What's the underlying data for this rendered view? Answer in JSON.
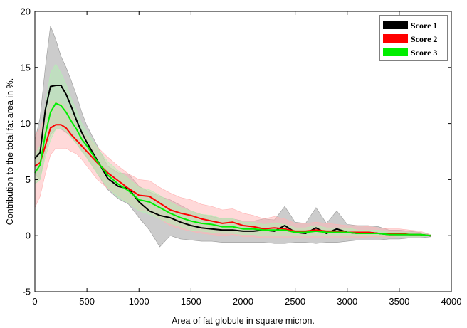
{
  "chart_data": {
    "type": "line",
    "title": "",
    "xlabel": "Area of fat globule in square micron.",
    "ylabel": "Contribution to the total fat area in %.",
    "xlim": [
      0,
      4000
    ],
    "ylim": [
      -5,
      20
    ],
    "xticks": [
      "0",
      "500",
      "1000",
      "1500",
      "2000",
      "2500",
      "3000",
      "3500",
      "4000"
    ],
    "yticks": [
      "-5",
      "0",
      "5",
      "10",
      "15",
      "20"
    ],
    "grid": false,
    "legend_position": "top-right",
    "x": [
      0,
      50,
      100,
      150,
      200,
      250,
      300,
      350,
      400,
      450,
      500,
      600,
      700,
      800,
      900,
      1000,
      1100,
      1200,
      1300,
      1400,
      1500,
      1600,
      1700,
      1800,
      1900,
      2000,
      2100,
      2200,
      2300,
      2400,
      2500,
      2600,
      2700,
      2800,
      2900,
      3000,
      3100,
      3200,
      3300,
      3400,
      3500,
      3600,
      3700,
      3800
    ],
    "series": [
      {
        "name": "Score 1",
        "color": "#000000",
        "band_color": "#9a9a9a",
        "values": [
          6.9,
          7.4,
          11.2,
          13.3,
          13.4,
          13.4,
          12.6,
          11.5,
          10.3,
          9.2,
          8.3,
          6.7,
          5.1,
          4.4,
          4.2,
          3.0,
          2.2,
          1.8,
          1.6,
          1.2,
          0.9,
          0.7,
          0.6,
          0.5,
          0.5,
          0.4,
          0.4,
          0.5,
          0.4,
          0.9,
          0.3,
          0.2,
          0.7,
          0.2,
          0.6,
          0.3,
          0.2,
          0.3,
          0.2,
          0.1,
          0.1,
          0.1,
          0.1,
          0.0
        ],
        "lower": [
          5.5,
          5.0,
          7.5,
          9.0,
          9.5,
          9.5,
          9.2,
          8.8,
          8.2,
          7.6,
          7.0,
          5.5,
          4.1,
          3.3,
          2.8,
          1.6,
          0.5,
          -1.0,
          0.0,
          -0.3,
          -0.4,
          -0.5,
          -0.5,
          -0.6,
          -0.6,
          -0.6,
          -0.6,
          -0.6,
          -0.7,
          -0.7,
          -0.6,
          -0.6,
          -0.7,
          -0.6,
          -0.6,
          -0.5,
          -0.4,
          -0.4,
          -0.4,
          -0.3,
          -0.3,
          -0.2,
          -0.2,
          -0.1
        ],
        "upper": [
          8.5,
          10.5,
          15.0,
          18.7,
          17.5,
          16.0,
          15.0,
          13.8,
          12.5,
          11.0,
          9.8,
          8.0,
          6.2,
          5.6,
          5.5,
          4.4,
          3.9,
          3.5,
          3.2,
          2.7,
          2.2,
          1.9,
          1.7,
          1.5,
          1.5,
          1.3,
          1.3,
          1.5,
          1.4,
          2.6,
          1.2,
          1.1,
          2.5,
          1.1,
          2.2,
          1.0,
          0.9,
          0.9,
          0.8,
          0.5,
          0.5,
          0.4,
          0.3,
          0.1
        ]
      },
      {
        "name": "Score 2",
        "color": "#ff0000",
        "band_color": "#ffb3b3",
        "values": [
          6.2,
          6.5,
          8.0,
          9.6,
          9.9,
          9.9,
          9.6,
          9.0,
          8.5,
          8.0,
          7.5,
          6.5,
          5.6,
          4.9,
          4.2,
          3.6,
          3.5,
          2.9,
          2.3,
          2.0,
          1.8,
          1.5,
          1.3,
          1.1,
          1.2,
          0.9,
          0.8,
          0.6,
          0.7,
          0.6,
          0.4,
          0.4,
          0.5,
          0.4,
          0.4,
          0.3,
          0.3,
          0.3,
          0.2,
          0.2,
          0.2,
          0.1,
          0.1,
          0.0
        ],
        "lower": [
          2.5,
          3.5,
          5.5,
          7.2,
          7.8,
          7.8,
          7.8,
          7.5,
          7.3,
          6.8,
          6.2,
          5.0,
          4.2,
          3.6,
          2.9,
          2.3,
          2.1,
          1.5,
          0.9,
          0.6,
          0.4,
          0.2,
          0.1,
          0.0,
          0.1,
          -0.1,
          -0.1,
          -0.2,
          -0.2,
          -0.2,
          -0.2,
          -0.2,
          -0.2,
          -0.2,
          -0.2,
          -0.2,
          -0.2,
          -0.1,
          -0.1,
          -0.1,
          -0.1,
          -0.1,
          -0.1,
          0.0
        ],
        "upper": [
          9.0,
          9.5,
          10.8,
          12.0,
          12.0,
          11.8,
          11.5,
          10.8,
          10.0,
          9.3,
          8.8,
          7.9,
          7.0,
          6.2,
          5.5,
          5.0,
          4.9,
          4.3,
          3.8,
          3.4,
          3.2,
          2.8,
          2.6,
          2.3,
          2.4,
          2.0,
          1.8,
          1.5,
          1.7,
          1.5,
          1.1,
          1.1,
          1.2,
          1.1,
          1.0,
          0.9,
          0.9,
          0.8,
          0.7,
          0.6,
          0.6,
          0.5,
          0.4,
          0.1
        ]
      },
      {
        "name": "Score 3",
        "color": "#00ee00",
        "band_color": "#b3f0b3",
        "values": [
          5.6,
          6.3,
          9.0,
          11.0,
          11.8,
          11.6,
          11.0,
          10.2,
          9.5,
          8.6,
          8.0,
          6.6,
          5.4,
          4.6,
          4.0,
          3.2,
          3.0,
          2.5,
          2.0,
          1.6,
          1.3,
          1.1,
          1.0,
          0.8,
          0.8,
          0.6,
          0.6,
          0.5,
          0.5,
          0.5,
          0.3,
          0.3,
          0.4,
          0.3,
          0.3,
          0.3,
          0.2,
          0.2,
          0.2,
          0.1,
          0.1,
          0.1,
          0.1,
          0.0
        ],
        "lower": [
          4.6,
          5.0,
          7.0,
          8.5,
          9.5,
          9.6,
          9.3,
          8.7,
          8.2,
          7.5,
          6.9,
          5.5,
          4.3,
          3.4,
          2.9,
          2.2,
          1.9,
          1.5,
          1.1,
          0.8,
          0.5,
          0.4,
          0.3,
          0.2,
          0.2,
          0.1,
          0.1,
          0.0,
          0.0,
          0.0,
          0.0,
          0.0,
          0.0,
          0.0,
          0.0,
          0.0,
          0.0,
          0.0,
          0.0,
          0.0,
          -0.1,
          -0.1,
          -0.1,
          0.0
        ],
        "upper": [
          7.2,
          8.0,
          11.5,
          14.5,
          15.3,
          14.5,
          13.5,
          12.2,
          11.2,
          10.0,
          9.3,
          7.8,
          6.6,
          5.8,
          5.1,
          4.3,
          4.1,
          3.6,
          3.0,
          2.5,
          2.2,
          1.9,
          1.8,
          1.5,
          1.5,
          1.2,
          1.2,
          1.0,
          1.1,
          1.0,
          0.7,
          0.7,
          0.9,
          0.7,
          0.7,
          0.7,
          0.5,
          0.5,
          0.5,
          0.3,
          0.3,
          0.3,
          0.2,
          0.1
        ]
      }
    ]
  }
}
